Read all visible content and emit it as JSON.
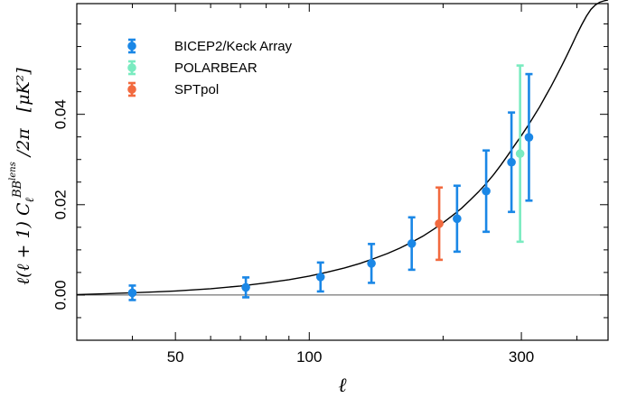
{
  "chart_data": {
    "type": "scatter",
    "title": "",
    "xlabel": "ℓ",
    "ylabel": {
      "main": "ℓ(ℓ + 1) C",
      "sub": "ℓ",
      "sup": "BB",
      "sup2": "lens",
      "tail": " /2π",
      "unit": "[μK²]"
    },
    "xscale": "log",
    "xlim": [
      30,
      470
    ],
    "ylim": [
      -0.01,
      0.0645
    ],
    "x_ticks": [
      {
        "value": 50,
        "label": "50"
      },
      {
        "value": 100,
        "label": "100"
      },
      {
        "value": 300,
        "label": "300"
      }
    ],
    "y_ticks": [
      {
        "value": 0.0,
        "label": "0.00"
      },
      {
        "value": 0.02,
        "label": "0.02"
      },
      {
        "value": 0.04,
        "label": "0.04"
      }
    ],
    "legend_position": "top-left",
    "model_curve": {
      "x": [
        30,
        35,
        40,
        45,
        50,
        60,
        70,
        80,
        90,
        100,
        110,
        120,
        130,
        140,
        150,
        160,
        170,
        180,
        190,
        200,
        210,
        220,
        230,
        240,
        250,
        260,
        270,
        280,
        290,
        300,
        310,
        320,
        330,
        340,
        350,
        360,
        370,
        380,
        390,
        400,
        410,
        420,
        430,
        440,
        450,
        460,
        470
      ],
      "y": [
        0.0001,
        0.0003,
        0.0005,
        0.0007,
        0.0009,
        0.0014,
        0.002,
        0.0027,
        0.0034,
        0.0042,
        0.0051,
        0.006,
        0.007,
        0.0081,
        0.0092,
        0.0104,
        0.0117,
        0.013,
        0.0145,
        0.016,
        0.0176,
        0.0192,
        0.021,
        0.0228,
        0.0247,
        0.0267,
        0.0288,
        0.031,
        0.0332,
        0.0353,
        0.0374,
        0.0396,
        0.0417,
        0.044,
        0.0462,
        0.0485,
        0.0508,
        0.0531,
        0.0554,
        0.0577,
        0.0598,
        0.0617,
        0.0632,
        0.0642,
        0.0648,
        0.0651,
        0.0653
      ]
    },
    "series": [
      {
        "name": "BICEP2/Keck Array",
        "color": "#1a87e6",
        "x": [
          40,
          72,
          106,
          138,
          170,
          215,
          250,
          285,
          312
        ],
        "y": [
          0.0005,
          0.0017,
          0.004,
          0.007,
          0.0114,
          0.0169,
          0.023,
          0.0294,
          0.0349
        ],
        "err": [
          0.0016,
          0.0022,
          0.0032,
          0.0043,
          0.0058,
          0.0073,
          0.009,
          0.011,
          0.014
        ]
      },
      {
        "name": "POLARBEAR",
        "color": "#7aebc0",
        "x": [
          298
        ],
        "y": [
          0.0313
        ],
        "err": [
          0.0195
        ]
      },
      {
        "name": "SPTpol",
        "color": "#f26a3f",
        "x": [
          196
        ],
        "y": [
          0.0158
        ],
        "err": [
          0.008
        ]
      }
    ]
  }
}
